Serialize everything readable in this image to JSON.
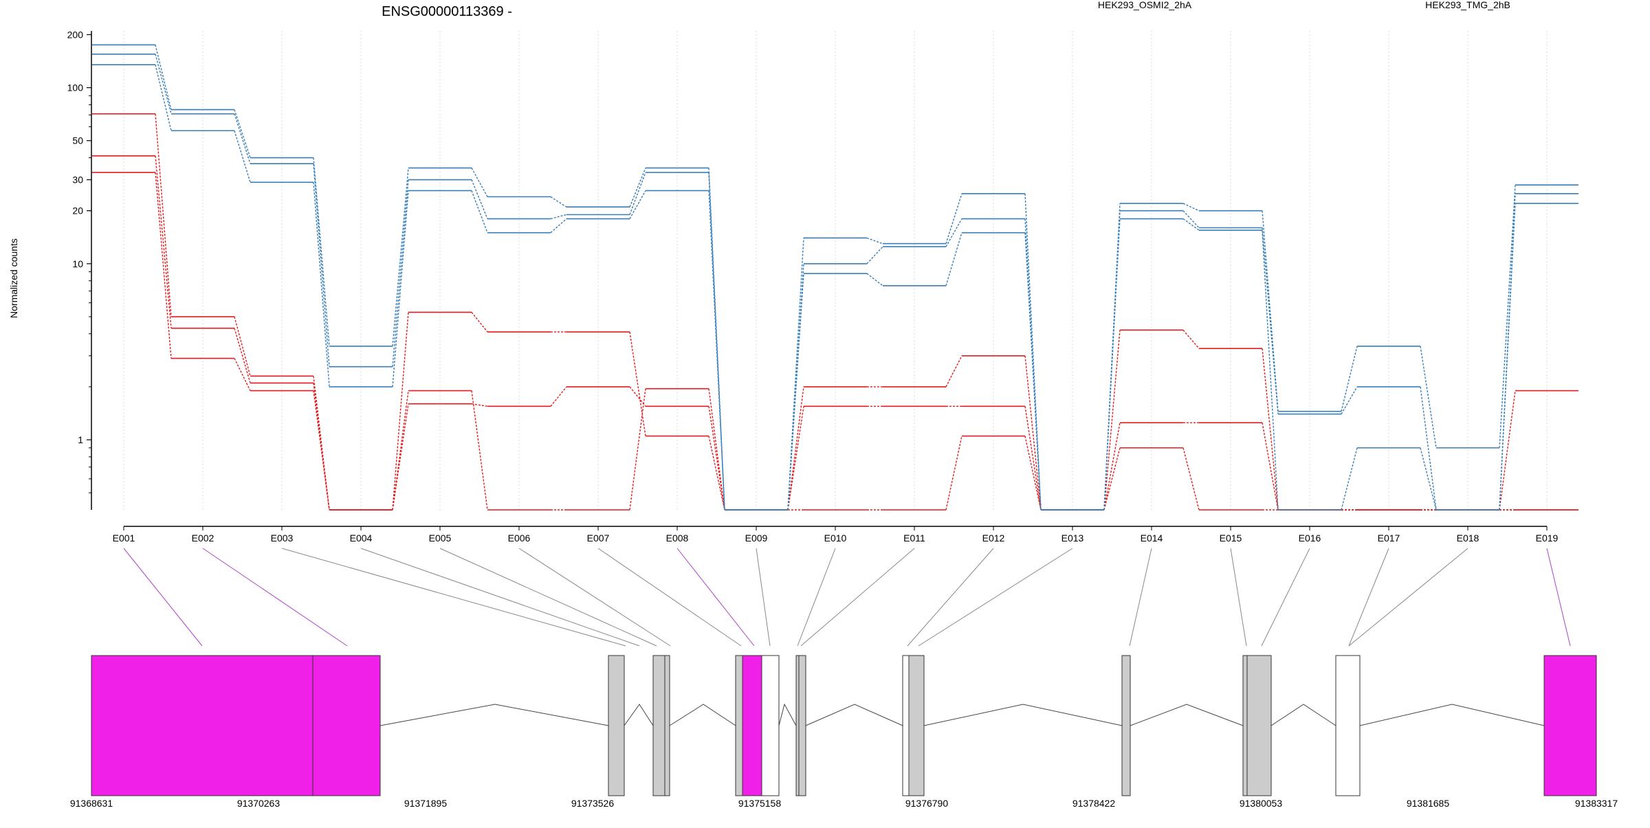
{
  "chart_data": {
    "type": "line",
    "title": "ENSG00000113369 -",
    "ylabel": "Normalized counts",
    "yscale": "log",
    "ylim": [
      0.4,
      210
    ],
    "yticks": [
      {
        "value": 200,
        "label": "200"
      },
      {
        "value": 100,
        "label": "100"
      },
      {
        "value": 50,
        "label": "50"
      },
      {
        "value": 30,
        "label": "30"
      },
      {
        "value": 20,
        "label": "20"
      },
      {
        "value": 10,
        "label": "10"
      },
      {
        "value": 1,
        "label": "1"
      }
    ],
    "grid": true,
    "legend_position": "top",
    "categories": [
      "E001",
      "E002",
      "E003",
      "E004",
      "E005",
      "E006",
      "E007",
      "E008",
      "E009",
      "E010",
      "E011",
      "E012",
      "E013",
      "E014",
      "E015",
      "E016",
      "E017",
      "E018",
      "E019"
    ],
    "series": [
      {
        "name": "HEK293_OSMI2_2hA",
        "color": "#e41a1c",
        "replicates": [
          [
            71,
            5.0,
            2.3,
            0.4,
            5.3,
            4.1,
            4.1,
            1.05,
            0.4,
            0.4,
            0.4,
            1.05,
            0.4,
            0.9,
            0.4,
            0.4,
            0.4,
            0.4,
            0.4
          ],
          [
            41,
            4.3,
            2.1,
            0.4,
            1.6,
            1.55,
            2.0,
            1.55,
            0.4,
            2.0,
            2.0,
            3.0,
            0.4,
            4.2,
            3.3,
            0.4,
            0.4,
            0.4,
            0.4
          ],
          [
            33,
            2.9,
            1.9,
            0.4,
            1.9,
            0.4,
            0.4,
            1.95,
            0.4,
            1.55,
            1.55,
            1.55,
            0.4,
            1.25,
            1.25,
            0.4,
            0.4,
            0.4,
            1.9
          ]
        ]
      },
      {
        "name": "HEK293_TMG_2hB",
        "color": "#377eb8",
        "replicates": [
          [
            175,
            75,
            40,
            3.4,
            35,
            24,
            21,
            35,
            0.4,
            14,
            13,
            25,
            0.4,
            22,
            20,
            1.45,
            3.4,
            0.9,
            28
          ],
          [
            155,
            71,
            37,
            2.6,
            30,
            18,
            19,
            33,
            0.4,
            10,
            12.5,
            18,
            0.4,
            20,
            16,
            1.4,
            2.0,
            0.4,
            25
          ],
          [
            135,
            57,
            29,
            2.0,
            26,
            15,
            18,
            26,
            0.4,
            8.8,
            7.5,
            15,
            0.4,
            18,
            15.5,
            0.4,
            0.9,
            0.4,
            22
          ]
        ]
      }
    ],
    "gene_model": {
      "axis_ticks": [
        "91368631",
        "91370263",
        "91371895",
        "91373526",
        "91375158",
        "91376790",
        "91378422",
        "91380053",
        "91381685",
        "91383317"
      ],
      "highlight_color": "#f020e8",
      "exon_color": "#cccccc",
      "highlighted_exons": [
        "E001",
        "E002",
        "E008",
        "E019"
      ]
    }
  }
}
